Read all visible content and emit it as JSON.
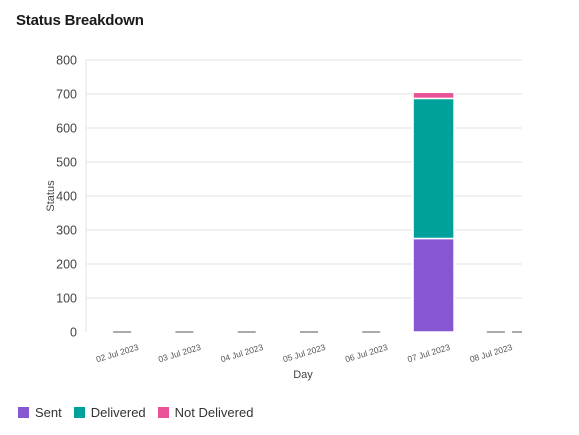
{
  "title": "Status Breakdown",
  "chart_data": {
    "type": "bar",
    "stacked": true,
    "categories": [
      "02 Jul 2023",
      "03 Jul 2023",
      "04 Jul 2023",
      "05 Jul 2023",
      "06 Jul 2023",
      "07 Jul 2023",
      "08 Jul 2023"
    ],
    "series": [
      {
        "name": "Sent",
        "color": "#8657d0",
        "values": [
          0,
          0,
          0,
          0,
          0,
          275,
          0
        ]
      },
      {
        "name": "Delivered",
        "color": "#00a19b",
        "values": [
          0,
          0,
          0,
          0,
          0,
          412,
          0
        ]
      },
      {
        "name": "Not Delivered",
        "color": "#ea5297",
        "values": [
          0,
          0,
          0,
          0,
          0,
          18,
          0
        ]
      }
    ],
    "xlabel": "Day",
    "ylabel": "Status",
    "ylim": [
      0,
      800
    ],
    "yticks": [
      0,
      100,
      200,
      300,
      400,
      500,
      600,
      700,
      800
    ],
    "grid": true,
    "legend_position": "bottom-left"
  }
}
